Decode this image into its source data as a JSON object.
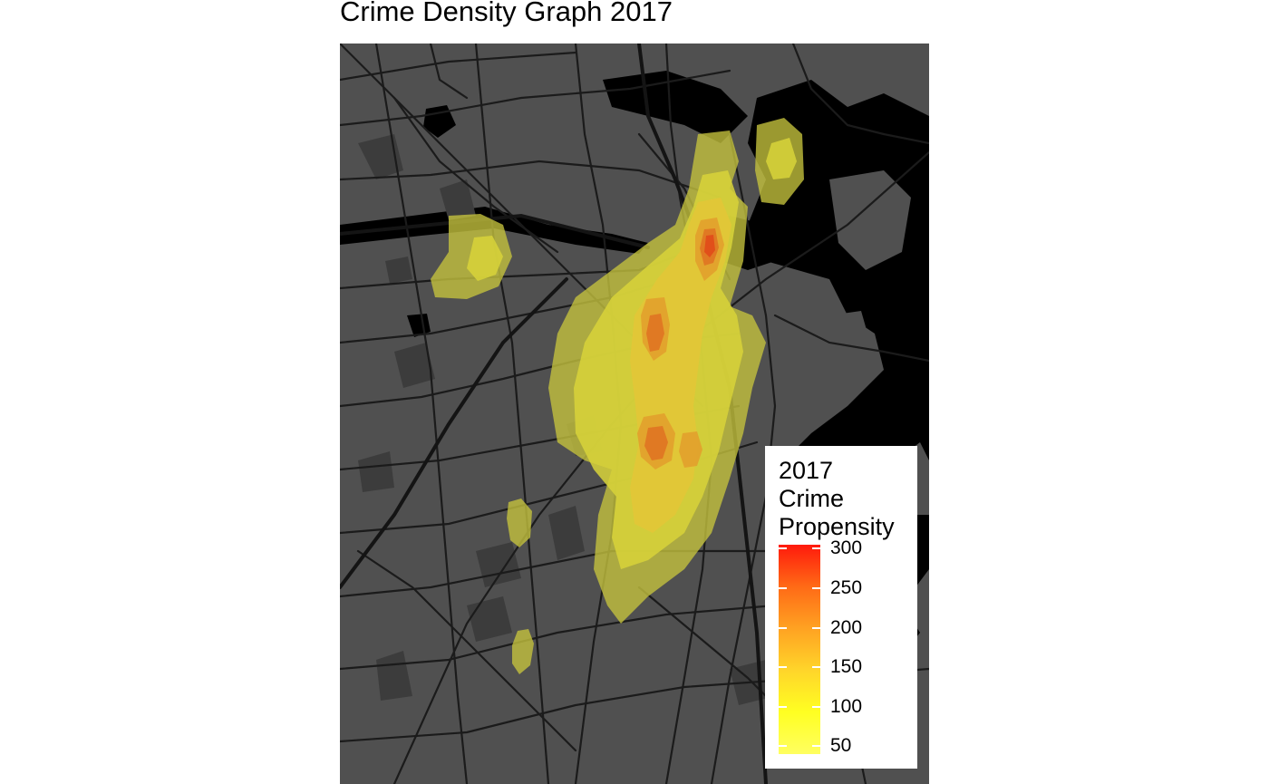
{
  "title": "Crime Density Graph 2017",
  "map": {
    "basemap": "dark street map",
    "colors": {
      "land": "#505050",
      "water": "#000000",
      "roads": "#1b1b1b",
      "parks": "#3c3c3c"
    }
  },
  "legend": {
    "title_lines": [
      "2017",
      "Crime",
      "Propensity"
    ],
    "ticks": [
      "300",
      "250",
      "200",
      "150",
      "100",
      "50"
    ],
    "tick_values": [
      300,
      250,
      200,
      150,
      100,
      50
    ],
    "range": [
      40,
      305
    ],
    "colors": {
      "low": "#ffff60",
      "high": "#ff1a0c"
    }
  },
  "density": {
    "layers": [
      {
        "level": 50,
        "color": "#c7c43e"
      },
      {
        "level": 100,
        "color": "#d8d43a"
      },
      {
        "level": 150,
        "color": "#e2c737"
      },
      {
        "level": 200,
        "color": "#e2a02c"
      },
      {
        "level": 250,
        "color": "#e07422"
      },
      {
        "level": 300,
        "color": "#e14a1a"
      }
    ]
  }
}
